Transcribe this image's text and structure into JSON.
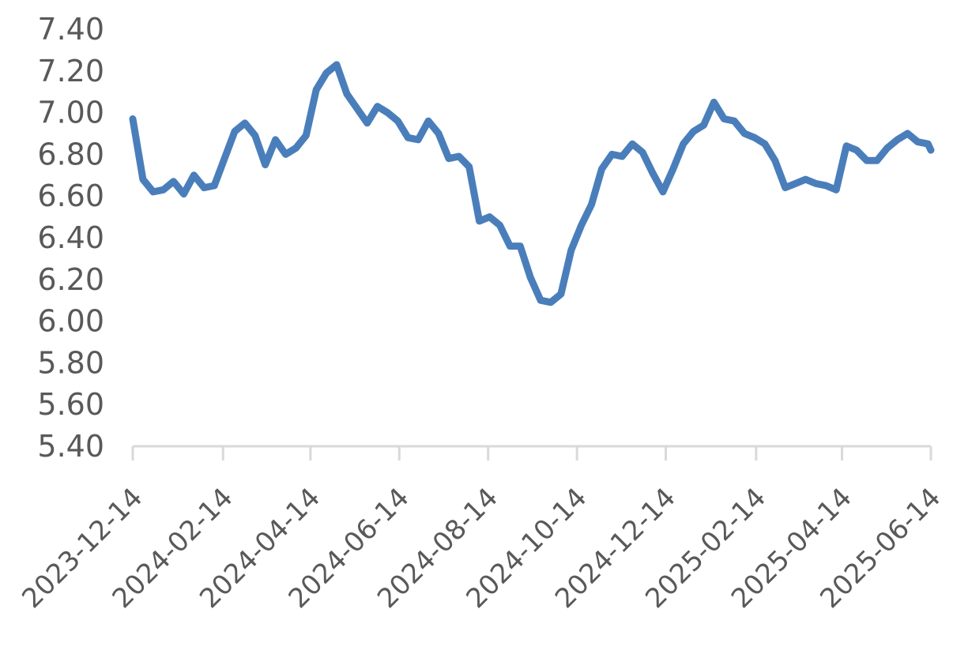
{
  "chart_data": {
    "type": "line",
    "title": "",
    "xlabel": "",
    "ylabel": "",
    "ylim": [
      5.4,
      7.4
    ],
    "yticks": [
      "7.40",
      "7.20",
      "7.00",
      "6.80",
      "6.60",
      "6.40",
      "6.20",
      "6.00",
      "5.80",
      "5.60",
      "5.40"
    ],
    "xticks": [
      "2023-12-14",
      "2024-02-14",
      "2024-04-14",
      "2024-06-14",
      "2024-08-14",
      "2024-10-14",
      "2024-12-14",
      "2025-02-14",
      "2025-04-14",
      "2025-06-14"
    ],
    "xlim": [
      "2023-12-14",
      "2025-06-14"
    ],
    "grid": false,
    "legend": "none",
    "series_color": "#4a7ebb",
    "axis_color": "#d9d9d9",
    "series": [
      {
        "x": [
          "2023-12-14",
          "2023-12-21",
          "2023-12-28",
          "2024-01-04",
          "2024-01-11",
          "2024-01-18",
          "2024-01-25",
          "2024-02-01",
          "2024-02-08",
          "2024-02-15",
          "2024-02-22",
          "2024-02-29",
          "2024-03-07",
          "2024-03-14",
          "2024-03-21",
          "2024-03-28",
          "2024-04-04",
          "2024-04-11",
          "2024-04-18",
          "2024-04-25",
          "2024-05-02",
          "2024-05-09",
          "2024-05-16",
          "2024-05-23",
          "2024-05-30",
          "2024-06-06",
          "2024-06-13",
          "2024-06-20",
          "2024-06-27",
          "2024-07-04",
          "2024-07-11",
          "2024-07-18",
          "2024-07-25",
          "2024-08-01",
          "2024-08-08",
          "2024-08-15",
          "2024-08-22",
          "2024-08-29",
          "2024-09-05",
          "2024-09-12",
          "2024-09-19",
          "2024-09-26",
          "2024-10-03",
          "2024-10-10",
          "2024-10-17",
          "2024-10-24",
          "2024-10-31",
          "2024-11-07",
          "2024-11-14",
          "2024-11-21",
          "2024-11-28",
          "2024-12-05",
          "2024-12-12",
          "2024-12-19",
          "2024-12-26",
          "2025-01-02",
          "2025-01-09",
          "2025-01-16",
          "2025-01-23",
          "2025-01-30",
          "2025-02-06",
          "2025-02-13",
          "2025-02-20",
          "2025-02-27",
          "2025-03-06",
          "2025-03-13",
          "2025-03-20",
          "2025-03-27",
          "2025-04-03",
          "2025-04-10",
          "2025-04-17",
          "2025-04-24",
          "2025-05-01",
          "2025-05-08",
          "2025-05-15",
          "2025-05-22",
          "2025-05-29",
          "2025-06-05",
          "2025-06-12",
          "2025-06-14"
        ],
        "y": [
          6.97,
          6.68,
          6.62,
          6.63,
          6.67,
          6.61,
          6.7,
          6.64,
          6.65,
          6.78,
          6.91,
          6.95,
          6.89,
          6.75,
          6.87,
          6.8,
          6.83,
          6.89,
          7.11,
          7.19,
          7.23,
          7.09,
          7.02,
          6.95,
          7.03,
          7.0,
          6.96,
          6.88,
          6.87,
          6.96,
          6.9,
          6.78,
          6.79,
          6.74,
          6.48,
          6.5,
          6.46,
          6.36,
          6.36,
          6.21,
          6.1,
          6.09,
          6.13,
          6.34,
          6.46,
          6.56,
          6.73,
          6.8,
          6.79,
          6.85,
          6.81,
          6.71,
          6.62,
          6.73,
          6.85,
          6.91,
          6.94,
          7.05,
          6.97,
          6.96,
          6.9,
          6.88,
          6.85,
          6.77,
          6.64,
          6.66,
          6.68,
          6.66,
          6.65,
          6.63,
          6.84,
          6.82,
          6.77,
          6.77,
          6.83,
          6.87,
          6.9,
          6.86,
          6.85,
          6.82
        ]
      }
    ]
  }
}
